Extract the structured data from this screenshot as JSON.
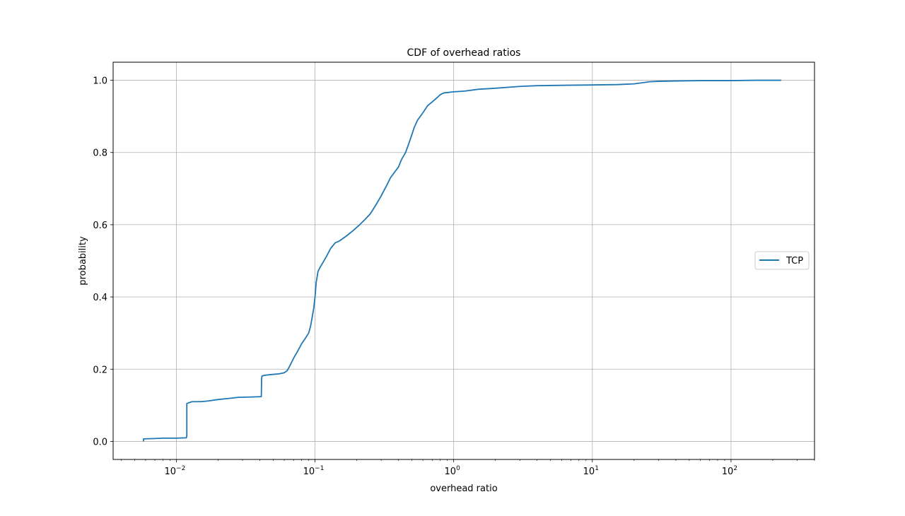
{
  "chart_data": {
    "type": "line",
    "title": "CDF of overhead ratios",
    "xlabel": "overhead ratio",
    "ylabel": "probability",
    "xscale": "log",
    "xlim": [
      0.0035,
      400
    ],
    "ylim": [
      -0.05,
      1.05
    ],
    "grid": true,
    "legend_position": "center right",
    "series_color": "#1f77b4",
    "x_ticks": [
      {
        "value": 0.01,
        "base": "10",
        "exp": "−2"
      },
      {
        "value": 0.1,
        "base": "10",
        "exp": "−1"
      },
      {
        "value": 1,
        "base": "10",
        "exp": "0"
      },
      {
        "value": 10,
        "base": "10",
        "exp": "1"
      },
      {
        "value": 100,
        "base": "10",
        "exp": "2"
      }
    ],
    "y_ticks": [
      {
        "value": 0.0,
        "label": "0.0"
      },
      {
        "value": 0.2,
        "label": "0.2"
      },
      {
        "value": 0.4,
        "label": "0.4"
      },
      {
        "value": 0.6,
        "label": "0.6"
      },
      {
        "value": 0.8,
        "label": "0.8"
      },
      {
        "value": 1.0,
        "label": "1.0"
      }
    ],
    "series": [
      {
        "name": "TCP",
        "x": [
          0.0058,
          0.0058,
          0.007,
          0.008,
          0.01,
          0.0118,
          0.0119,
          0.0119,
          0.0123,
          0.013,
          0.015,
          0.017,
          0.02,
          0.024,
          0.028,
          0.035,
          0.041,
          0.0412,
          0.0415,
          0.043,
          0.048,
          0.055,
          0.06,
          0.063,
          0.066,
          0.07,
          0.075,
          0.08,
          0.085,
          0.09,
          0.093,
          0.095,
          0.098,
          0.1,
          0.102,
          0.105,
          0.108,
          0.112,
          0.12,
          0.13,
          0.14,
          0.15,
          0.17,
          0.19,
          0.21,
          0.23,
          0.25,
          0.26,
          0.28,
          0.3,
          0.33,
          0.35,
          0.4,
          0.42,
          0.45,
          0.48,
          0.5,
          0.52,
          0.55,
          0.6,
          0.65,
          0.7,
          0.75,
          0.8,
          0.85,
          0.9,
          1.0,
          1.2,
          1.5,
          2.0,
          3.0,
          4.0,
          6.0,
          10,
          15,
          20,
          26,
          30,
          40,
          60,
          100,
          150,
          230
        ],
        "y": [
          0.0,
          0.007,
          0.008,
          0.009,
          0.009,
          0.01,
          0.015,
          0.105,
          0.107,
          0.11,
          0.11,
          0.112,
          0.116,
          0.119,
          0.122,
          0.123,
          0.124,
          0.175,
          0.181,
          0.183,
          0.185,
          0.187,
          0.19,
          0.196,
          0.21,
          0.23,
          0.25,
          0.27,
          0.285,
          0.3,
          0.32,
          0.34,
          0.37,
          0.4,
          0.44,
          0.47,
          0.48,
          0.49,
          0.51,
          0.535,
          0.55,
          0.555,
          0.57,
          0.585,
          0.6,
          0.615,
          0.63,
          0.64,
          0.66,
          0.68,
          0.71,
          0.73,
          0.76,
          0.78,
          0.8,
          0.83,
          0.85,
          0.87,
          0.89,
          0.91,
          0.93,
          0.94,
          0.95,
          0.96,
          0.965,
          0.966,
          0.968,
          0.97,
          0.975,
          0.978,
          0.983,
          0.985,
          0.986,
          0.987,
          0.988,
          0.99,
          0.996,
          0.997,
          0.998,
          0.999,
          0.999,
          1.0,
          1.0
        ]
      }
    ]
  }
}
